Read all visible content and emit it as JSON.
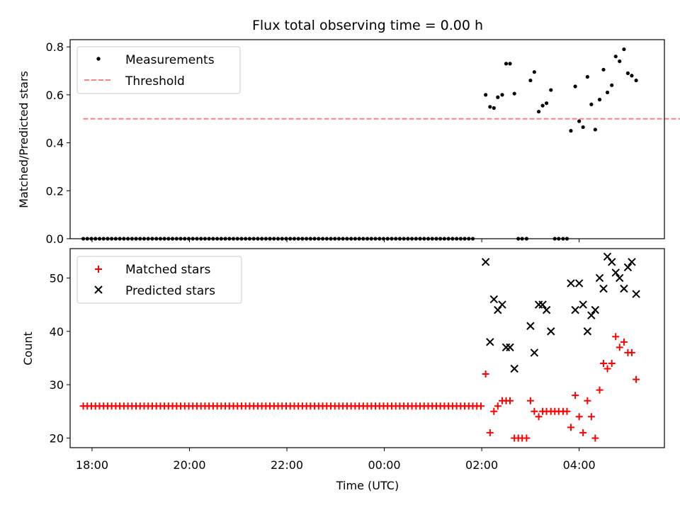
{
  "chart_data": [
    {
      "type": "scatter",
      "title": "Flux total observing time = 0.00 h",
      "xlabel": "",
      "ylabel": "Matched/Predicted stars",
      "xlim_hours": [
        17.55,
        29.75
      ],
      "ylim": [
        0,
        0.83
      ],
      "yticks": [
        0.0,
        0.2,
        0.4,
        0.6,
        0.8
      ],
      "grid": false,
      "legend_position": "top-left",
      "threshold": {
        "name": "Threshold",
        "value": 0.5,
        "x_start": 17.82,
        "x_end": 30.08,
        "color": "#ff8080"
      },
      "series": [
        {
          "name": "Measurements",
          "color": "#000000",
          "marker": "dot",
          "x_start": 17.82,
          "x_step": 0.0833,
          "zero_count": 97,
          "points": [
            [
              26.08,
              0.6
            ],
            [
              26.17,
              0.55
            ],
            [
              26.25,
              0.545
            ],
            [
              26.33,
              0.59
            ],
            [
              26.42,
              0.6
            ],
            [
              26.5,
              0.73
            ],
            [
              26.58,
              0.73
            ],
            [
              26.67,
              0.605
            ],
            [
              26.75,
              0.0
            ],
            [
              26.83,
              0.0
            ],
            [
              26.92,
              0.0
            ],
            [
              27.0,
              0.66
            ],
            [
              27.08,
              0.695
            ],
            [
              27.17,
              0.53
            ],
            [
              27.25,
              0.555
            ],
            [
              27.33,
              0.565
            ],
            [
              27.42,
              0.62
            ],
            [
              27.5,
              0.0
            ],
            [
              27.58,
              0.0
            ],
            [
              27.67,
              0.0
            ],
            [
              27.75,
              0.0
            ],
            [
              27.83,
              0.45
            ],
            [
              27.92,
              0.635
            ],
            [
              28.0,
              0.49
            ],
            [
              28.08,
              0.465
            ],
            [
              28.17,
              0.675
            ],
            [
              28.25,
              0.56
            ],
            [
              28.33,
              0.455
            ],
            [
              28.42,
              0.58
            ],
            [
              28.5,
              0.705
            ],
            [
              28.58,
              0.61
            ],
            [
              28.67,
              0.64
            ],
            [
              28.75,
              0.76
            ],
            [
              28.83,
              0.74
            ],
            [
              28.92,
              0.79
            ],
            [
              29.0,
              0.69
            ],
            [
              29.08,
              0.68
            ],
            [
              29.17,
              0.66
            ]
          ]
        }
      ]
    },
    {
      "type": "scatter",
      "title": "",
      "xlabel": "Time (UTC)",
      "ylabel": "Count",
      "xlim_hours": [
        17.55,
        29.75
      ],
      "ylim": [
        18.2,
        55.5
      ],
      "yticks": [
        20,
        30,
        40,
        50
      ],
      "xticks": [
        "18:00",
        "20:00",
        "22:00",
        "00:00",
        "02:00",
        "04:00"
      ],
      "xtick_hours": [
        18,
        20,
        22,
        24,
        26,
        28
      ],
      "grid": false,
      "legend_position": "top-left",
      "series": [
        {
          "name": "Matched stars",
          "color": "#ff0000",
          "marker": "plus",
          "baseline_value": 26,
          "x_start": 17.82,
          "x_step": 0.0833,
          "baseline_count": 99,
          "points": [
            [
              26.08,
              32
            ],
            [
              26.17,
              21
            ],
            [
              26.25,
              25
            ],
            [
              26.33,
              26
            ],
            [
              26.42,
              27
            ],
            [
              26.5,
              27
            ],
            [
              26.58,
              27
            ],
            [
              26.67,
              20
            ],
            [
              26.75,
              20
            ],
            [
              26.83,
              20
            ],
            [
              26.92,
              20
            ],
            [
              27.0,
              27
            ],
            [
              27.08,
              25
            ],
            [
              27.17,
              24
            ],
            [
              27.25,
              25
            ],
            [
              27.33,
              25
            ],
            [
              27.42,
              25
            ],
            [
              27.5,
              25
            ],
            [
              27.58,
              25
            ],
            [
              27.67,
              25
            ],
            [
              27.75,
              25
            ],
            [
              27.83,
              22
            ],
            [
              27.92,
              28
            ],
            [
              28.0,
              24
            ],
            [
              28.08,
              21
            ],
            [
              28.17,
              27
            ],
            [
              28.25,
              24
            ],
            [
              28.33,
              20
            ],
            [
              28.42,
              29
            ],
            [
              28.5,
              34
            ],
            [
              28.58,
              33
            ],
            [
              28.67,
              34
            ],
            [
              28.75,
              39
            ],
            [
              28.83,
              37
            ],
            [
              28.92,
              38
            ],
            [
              29.0,
              36
            ],
            [
              29.08,
              36
            ],
            [
              29.17,
              31
            ]
          ]
        },
        {
          "name": "Predicted stars",
          "color": "#000000",
          "marker": "x",
          "points": [
            [
              26.08,
              53
            ],
            [
              26.17,
              38
            ],
            [
              26.25,
              46
            ],
            [
              26.33,
              44
            ],
            [
              26.42,
              45
            ],
            [
              26.5,
              37
            ],
            [
              26.58,
              37
            ],
            [
              26.67,
              33
            ],
            [
              27.0,
              41
            ],
            [
              27.08,
              36
            ],
            [
              27.17,
              45
            ],
            [
              27.25,
              45
            ],
            [
              27.33,
              44
            ],
            [
              27.42,
              40
            ],
            [
              27.83,
              49
            ],
            [
              27.92,
              44
            ],
            [
              28.0,
              49
            ],
            [
              28.08,
              45
            ],
            [
              28.17,
              40
            ],
            [
              28.25,
              43
            ],
            [
              28.33,
              44
            ],
            [
              28.42,
              50
            ],
            [
              28.5,
              48
            ],
            [
              28.58,
              54
            ],
            [
              28.67,
              53
            ],
            [
              28.75,
              51
            ],
            [
              28.83,
              50
            ],
            [
              28.92,
              48
            ],
            [
              29.0,
              52
            ],
            [
              29.08,
              53
            ],
            [
              29.17,
              47
            ]
          ]
        }
      ]
    }
  ]
}
